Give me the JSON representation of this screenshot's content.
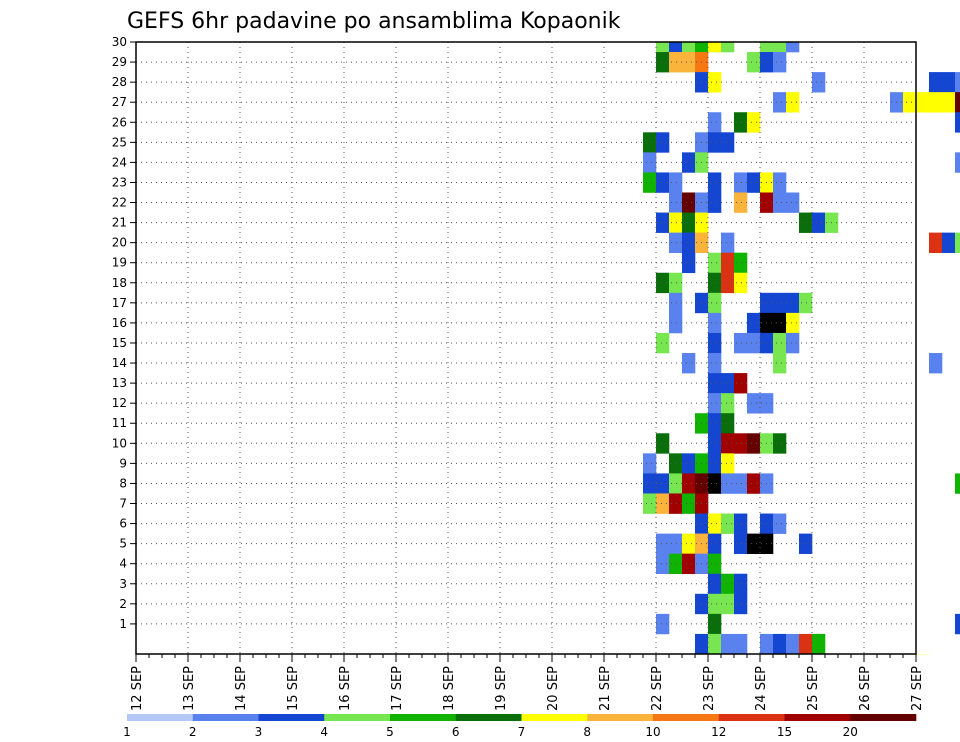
{
  "chart_data": {
    "type": "heatmap",
    "title": "GEFS 6hr padavine po ansamblima Kopaonik",
    "x_tick_labels": [
      "12 SEP",
      "13 SEP",
      "14 SEP",
      "15 SEP",
      "16 SEP",
      "17 SEP",
      "18 SEP",
      "19 SEP",
      "20 SEP",
      "21 SEP",
      "22 SEP",
      "23 SEP",
      "24 SEP",
      "25 SEP",
      "26 SEP",
      "27 SEP"
    ],
    "y_tick_labels": [
      "1",
      "2",
      "3",
      "4",
      "5",
      "6",
      "7",
      "8",
      "9",
      "10",
      "11",
      "12",
      "13",
      "14",
      "15",
      "16",
      "17",
      "18",
      "19",
      "20",
      "21",
      "22",
      "23",
      "24",
      "25",
      "26",
      "27",
      "28",
      "29",
      "30"
    ],
    "x_range_days": [
      0,
      15
    ],
    "y_range": [
      0,
      30
    ],
    "time_step_hours": 6,
    "grid": true,
    "grid_style": "dotted",
    "legend_position": "bottom",
    "colorbar": {
      "labels": [
        "1",
        "2",
        "3",
        "4",
        "5",
        "6",
        "7",
        "8",
        "10",
        "12",
        "15",
        "20"
      ],
      "colors": [
        "#b4c8f5",
        "#5a82ee",
        "#1446d2",
        "#78e650",
        "#10b400",
        "#0a6e0a",
        "#ffff00",
        "#fab43c",
        "#f57814",
        "#dc3214",
        "#a00000",
        "#640000"
      ]
    },
    "cells": [
      [
        40,
        30,
        3
      ],
      [
        41,
        30,
        2
      ],
      [
        42,
        30,
        3
      ],
      [
        43,
        30,
        4
      ],
      [
        44,
        30,
        6
      ],
      [
        45,
        30,
        3
      ],
      [
        48,
        30,
        3
      ],
      [
        49,
        30,
        3
      ],
      [
        50,
        30,
        1
      ],
      [
        40,
        29,
        5
      ],
      [
        41,
        29,
        7
      ],
      [
        42,
        29,
        7
      ],
      [
        43,
        29,
        8
      ],
      [
        47,
        29,
        3
      ],
      [
        48,
        29,
        2
      ],
      [
        49,
        29,
        1
      ],
      [
        71,
        29,
        2
      ],
      [
        43,
        28,
        2
      ],
      [
        44,
        28,
        6
      ],
      [
        52,
        28,
        1
      ],
      [
        61,
        28,
        2
      ],
      [
        62,
        28,
        2
      ],
      [
        63,
        28,
        1
      ],
      [
        64,
        28,
        1
      ],
      [
        49,
        27,
        1
      ],
      [
        50,
        27,
        6
      ],
      [
        58,
        27,
        1
      ],
      [
        59,
        27,
        6
      ],
      [
        60,
        27,
        6
      ],
      [
        61,
        27,
        6
      ],
      [
        62,
        27,
        6
      ],
      [
        63,
        27,
        11
      ],
      [
        64,
        27,
        5
      ],
      [
        65,
        27,
        1
      ],
      [
        66,
        27,
        1
      ],
      [
        67,
        27,
        2
      ],
      [
        68,
        27,
        11
      ],
      [
        69,
        27,
        6
      ],
      [
        70,
        27,
        1
      ],
      [
        71,
        27,
        3
      ],
      [
        44,
        26,
        1
      ],
      [
        46,
        26,
        5
      ],
      [
        47,
        26,
        6
      ],
      [
        63,
        26,
        2
      ],
      [
        64,
        26,
        11
      ],
      [
        65,
        26,
        8
      ],
      [
        66,
        26,
        6
      ],
      [
        39,
        25,
        5
      ],
      [
        40,
        25,
        2
      ],
      [
        43,
        25,
        1
      ],
      [
        44,
        25,
        2
      ],
      [
        45,
        25,
        2
      ],
      [
        39,
        24,
        1
      ],
      [
        42,
        24,
        2
      ],
      [
        43,
        24,
        3
      ],
      [
        63,
        24,
        1
      ],
      [
        64,
        24,
        3
      ],
      [
        39,
        23,
        4
      ],
      [
        40,
        23,
        2
      ],
      [
        41,
        23,
        1
      ],
      [
        44,
        23,
        2
      ],
      [
        46,
        23,
        1
      ],
      [
        47,
        23,
        2
      ],
      [
        48,
        23,
        6
      ],
      [
        49,
        23,
        1
      ],
      [
        65,
        23,
        7
      ],
      [
        71,
        23,
        3
      ],
      [
        72,
        23,
        2
      ],
      [
        73,
        23,
        4
      ],
      [
        74,
        23,
        5
      ],
      [
        75,
        23,
        1
      ],
      [
        41,
        22,
        1
      ],
      [
        42,
        22,
        11
      ],
      [
        43,
        22,
        1
      ],
      [
        44,
        22,
        2
      ],
      [
        46,
        22,
        7
      ],
      [
        48,
        22,
        10
      ],
      [
        49,
        22,
        1
      ],
      [
        50,
        22,
        1
      ],
      [
        65,
        22,
        7
      ],
      [
        66,
        22,
        12
      ],
      [
        67,
        22,
        4
      ],
      [
        68,
        22,
        7
      ],
      [
        69,
        22,
        6
      ],
      [
        70,
        22,
        2
      ],
      [
        74,
        22,
        5
      ],
      [
        75,
        22,
        7
      ],
      [
        76,
        22,
        1
      ],
      [
        78,
        22,
        1
      ],
      [
        40,
        21,
        2
      ],
      [
        41,
        21,
        6
      ],
      [
        42,
        21,
        5
      ],
      [
        43,
        21,
        6
      ],
      [
        51,
        21,
        5
      ],
      [
        52,
        21,
        2
      ],
      [
        53,
        21,
        3
      ],
      [
        66,
        21,
        6
      ],
      [
        67,
        21,
        11
      ],
      [
        68,
        21,
        11
      ],
      [
        69,
        21,
        6
      ],
      [
        70,
        21,
        1
      ],
      [
        75,
        21,
        1
      ],
      [
        76,
        21,
        2
      ],
      [
        91,
        21,
        2
      ],
      [
        41,
        20,
        1
      ],
      [
        42,
        20,
        2
      ],
      [
        43,
        20,
        7
      ],
      [
        45,
        20,
        1
      ],
      [
        61,
        20,
        9
      ],
      [
        62,
        20,
        2
      ],
      [
        63,
        20,
        3
      ],
      [
        64,
        20,
        6
      ],
      [
        65,
        20,
        1
      ],
      [
        80,
        20,
        2
      ],
      [
        81,
        20,
        3
      ],
      [
        89,
        20,
        1
      ],
      [
        90,
        20,
        5
      ],
      [
        42,
        19,
        2
      ],
      [
        44,
        19,
        3
      ],
      [
        45,
        19,
        9
      ],
      [
        46,
        19,
        4
      ],
      [
        79,
        19,
        4
      ],
      [
        80,
        19,
        9
      ],
      [
        81,
        19,
        2
      ],
      [
        82,
        19,
        1
      ],
      [
        40,
        18,
        5
      ],
      [
        41,
        18,
        3
      ],
      [
        44,
        18,
        5
      ],
      [
        45,
        18,
        9
      ],
      [
        46,
        18,
        6
      ],
      [
        64,
        18,
        1
      ],
      [
        65,
        18,
        1
      ],
      [
        41,
        17,
        1
      ],
      [
        43,
        17,
        2
      ],
      [
        44,
        17,
        3
      ],
      [
        48,
        17,
        2
      ],
      [
        49,
        17,
        2
      ],
      [
        50,
        17,
        2
      ],
      [
        51,
        17,
        3
      ],
      [
        64,
        17,
        1
      ],
      [
        65,
        17,
        4
      ],
      [
        66,
        17,
        7
      ],
      [
        67,
        17,
        11
      ],
      [
        68,
        17,
        7
      ],
      [
        41,
        16,
        1
      ],
      [
        44,
        16,
        1
      ],
      [
        47,
        16,
        2
      ],
      [
        48,
        16,
        12
      ],
      [
        49,
        16,
        13
      ],
      [
        50,
        16,
        6
      ],
      [
        73,
        16,
        4
      ],
      [
        74,
        16,
        7
      ],
      [
        75,
        16,
        4
      ],
      [
        76,
        16,
        6
      ],
      [
        77,
        16,
        2
      ],
      [
        78,
        16,
        1
      ],
      [
        82,
        16,
        1
      ],
      [
        40,
        15,
        3
      ],
      [
        44,
        15,
        2
      ],
      [
        46,
        15,
        1
      ],
      [
        47,
        15,
        1
      ],
      [
        48,
        15,
        2
      ],
      [
        49,
        15,
        3
      ],
      [
        50,
        15,
        1
      ],
      [
        66,
        15,
        2
      ],
      [
        42,
        14,
        1
      ],
      [
        44,
        14,
        1
      ],
      [
        49,
        14,
        3
      ],
      [
        61,
        14,
        1
      ],
      [
        44,
        13,
        2
      ],
      [
        45,
        13,
        2
      ],
      [
        46,
        13,
        10
      ],
      [
        87,
        13,
        1
      ],
      [
        88,
        13,
        10
      ],
      [
        89,
        13,
        1
      ],
      [
        44,
        12,
        1
      ],
      [
        45,
        12,
        3
      ],
      [
        47,
        12,
        1
      ],
      [
        48,
        12,
        1
      ],
      [
        65,
        12,
        2
      ],
      [
        66,
        12,
        3
      ],
      [
        67,
        12,
        1
      ],
      [
        43,
        11,
        4
      ],
      [
        44,
        11,
        2
      ],
      [
        45,
        11,
        5
      ],
      [
        76,
        11,
        2
      ],
      [
        40,
        10,
        5
      ],
      [
        44,
        10,
        2
      ],
      [
        45,
        10,
        10
      ],
      [
        46,
        10,
        10
      ],
      [
        47,
        10,
        11
      ],
      [
        48,
        10,
        3
      ],
      [
        49,
        10,
        5
      ],
      [
        94,
        10,
        1
      ],
      [
        39,
        9,
        1
      ],
      [
        41,
        9,
        5
      ],
      [
        42,
        9,
        2
      ],
      [
        43,
        9,
        4
      ],
      [
        44,
        9,
        2
      ],
      [
        45,
        9,
        6
      ],
      [
        39,
        8,
        2
      ],
      [
        40,
        8,
        2
      ],
      [
        41,
        8,
        3
      ],
      [
        42,
        8,
        10
      ],
      [
        43,
        8,
        11
      ],
      [
        44,
        8,
        13
      ],
      [
        45,
        8,
        1
      ],
      [
        46,
        8,
        1
      ],
      [
        47,
        8,
        10
      ],
      [
        48,
        8,
        1
      ],
      [
        63,
        8,
        4
      ],
      [
        64,
        8,
        1
      ],
      [
        39,
        7,
        3
      ],
      [
        40,
        7,
        7
      ],
      [
        41,
        7,
        10
      ],
      [
        42,
        7,
        4
      ],
      [
        43,
        7,
        10
      ],
      [
        68,
        7,
        5
      ],
      [
        43,
        6,
        2
      ],
      [
        44,
        6,
        6
      ],
      [
        45,
        6,
        3
      ],
      [
        46,
        6,
        2
      ],
      [
        48,
        6,
        2
      ],
      [
        49,
        6,
        1
      ],
      [
        73,
        6,
        1
      ],
      [
        74,
        6,
        2
      ],
      [
        75,
        6,
        6
      ],
      [
        76,
        6,
        2
      ],
      [
        77,
        6,
        1
      ],
      [
        78,
        6,
        1
      ],
      [
        40,
        5,
        1
      ],
      [
        41,
        5,
        1
      ],
      [
        42,
        5,
        6
      ],
      [
        43,
        5,
        7
      ],
      [
        44,
        5,
        2
      ],
      [
        46,
        5,
        2
      ],
      [
        47,
        5,
        12
      ],
      [
        48,
        5,
        12
      ],
      [
        51,
        5,
        2
      ],
      [
        73,
        5,
        1
      ],
      [
        90,
        5,
        4
      ],
      [
        91,
        5,
        1
      ],
      [
        40,
        4,
        1
      ],
      [
        41,
        4,
        4
      ],
      [
        42,
        4,
        10
      ],
      [
        43,
        4,
        1
      ],
      [
        44,
        4,
        4
      ],
      [
        87,
        4,
        2
      ],
      [
        88,
        4,
        1
      ],
      [
        89,
        4,
        7
      ],
      [
        90,
        4,
        3
      ],
      [
        44,
        3,
        2
      ],
      [
        45,
        3,
        4
      ],
      [
        46,
        3,
        2
      ],
      [
        43,
        2,
        2
      ],
      [
        44,
        2,
        3
      ],
      [
        45,
        2,
        3
      ],
      [
        46,
        2,
        2
      ],
      [
        40,
        1,
        1
      ],
      [
        44,
        1,
        5
      ],
      [
        63,
        1,
        2
      ],
      [
        64,
        1,
        11
      ],
      [
        65,
        1,
        2
      ],
      [
        66,
        1,
        3
      ],
      [
        67,
        1,
        2
      ],
      [
        68,
        1,
        5
      ],
      [
        69,
        1,
        3
      ],
      [
        70,
        1,
        2
      ],
      [
        71,
        1,
        2
      ],
      [
        76,
        1,
        3
      ],
      [
        43,
        0,
        2
      ],
      [
        44,
        0,
        3
      ],
      [
        45,
        0,
        1
      ],
      [
        46,
        0,
        1
      ],
      [
        48,
        0,
        1
      ],
      [
        49,
        0,
        2
      ],
      [
        50,
        0,
        1
      ],
      [
        51,
        0,
        9
      ],
      [
        52,
        0,
        4
      ],
      [
        39,
        -1,
        1
      ],
      [
        40,
        -1,
        8
      ],
      [
        41,
        -1,
        8
      ],
      [
        42,
        -1,
        8
      ],
      [
        43,
        -1,
        9
      ],
      [
        44,
        -1,
        11
      ],
      [
        45,
        -1,
        9
      ],
      [
        46,
        -1,
        3
      ],
      [
        47,
        -1,
        3
      ],
      [
        56,
        -1,
        5
      ],
      [
        60,
        -1,
        6
      ]
    ]
  }
}
